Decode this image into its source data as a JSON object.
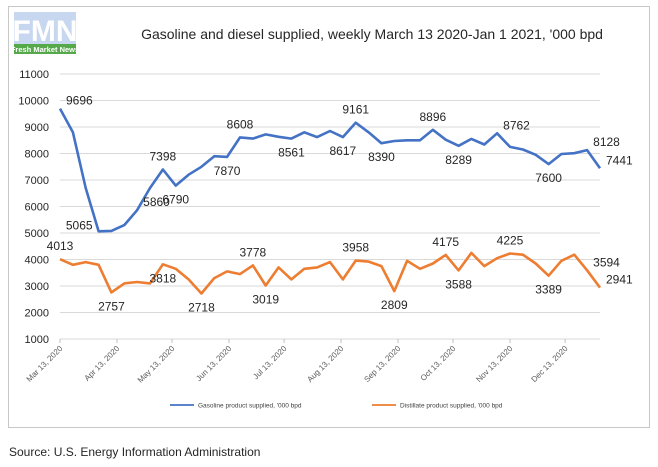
{
  "logo": {
    "letters": "FMN",
    "text": "Fresh Market News"
  },
  "chart_data": {
    "type": "line",
    "title": "Gasoline and diesel supplied, weekly March 13 2020-Jan 1 2021, '000 bpd",
    "ylim": [
      1000,
      11000
    ],
    "yticks": [
      1000,
      2000,
      3000,
      4000,
      5000,
      6000,
      7000,
      8000,
      9000,
      10000,
      11000
    ],
    "x_tick_labels": [
      "Mar 13, 2020",
      "Apr 13, 2020",
      "May 13, 2020",
      "Jun 13, 2020",
      "Jul 13, 2020",
      "Aug 13, 2020",
      "Sep 13, 2020",
      "Oct 13, 2020",
      "Nov 13, 2020",
      "Dec 13, 2020"
    ],
    "x_tick_week_index": [
      0,
      4.43,
      8.71,
      13.14,
      17.43,
      21.86,
      26.29,
      30.57,
      35,
      39.29
    ],
    "legend_position": "bottom",
    "series": [
      {
        "name": "Gasoline product supplied, '000 bpd",
        "color": "#4472C4",
        "values": [
          9696,
          8800,
          6700,
          5065,
          5080,
          5300,
          5860,
          6700,
          7398,
          6790,
          7200,
          7500,
          7900,
          7870,
          8608,
          8561,
          8720,
          8630,
          8561,
          8800,
          8617,
          8850,
          8617,
          9161,
          8800,
          8390,
          8470,
          8500,
          8500,
          8896,
          8520,
          8289,
          8550,
          8340,
          8762,
          8250,
          8150,
          7950,
          7600,
          7980,
          8010,
          8128,
          7441
        ],
        "labels": [
          {
            "i": 0,
            "text": "9696",
            "pos": "right"
          },
          {
            "i": 3,
            "text": "5065",
            "pos": "left"
          },
          {
            "i": 6,
            "text": "5860",
            "pos": "right"
          },
          {
            "i": 8,
            "text": "7398",
            "pos": "above"
          },
          {
            "i": 9,
            "text": "6790",
            "pos": "below"
          },
          {
            "i": 13,
            "text": "7870",
            "pos": "below"
          },
          {
            "i": 14,
            "text": "8608",
            "pos": "above"
          },
          {
            "i": 18,
            "text": "8561",
            "pos": "below"
          },
          {
            "i": 22,
            "text": "8617",
            "pos": "below"
          },
          {
            "i": 23,
            "text": "9161",
            "pos": "above"
          },
          {
            "i": 25,
            "text": "8390",
            "pos": "below"
          },
          {
            "i": 29,
            "text": "8896",
            "pos": "above"
          },
          {
            "i": 31,
            "text": "8289",
            "pos": "below"
          },
          {
            "i": 34,
            "text": "8762",
            "pos": "right"
          },
          {
            "i": 38,
            "text": "7600",
            "pos": "below"
          },
          {
            "i": 41,
            "text": "8128",
            "pos": "right"
          },
          {
            "i": 42,
            "text": "7441",
            "pos": "right"
          }
        ]
      },
      {
        "name": "Distillate product supplied, '000 bpd",
        "color": "#ED7D31",
        "values": [
          4013,
          3800,
          3900,
          3800,
          2757,
          3100,
          3150,
          3100,
          3818,
          3650,
          3250,
          2718,
          3300,
          3550,
          3450,
          3778,
          3019,
          3700,
          3250,
          3650,
          3700,
          3900,
          3250,
          3958,
          3920,
          3750,
          2809,
          3950,
          3650,
          3850,
          4175,
          3588,
          4250,
          3750,
          4050,
          4225,
          4180,
          3850,
          3389,
          3950,
          4180,
          3594,
          2941
        ],
        "labels": [
          {
            "i": 0,
            "text": "4013",
            "pos": "above"
          },
          {
            "i": 4,
            "text": "2757",
            "pos": "below"
          },
          {
            "i": 8,
            "text": "3818",
            "pos": "below"
          },
          {
            "i": 11,
            "text": "2718",
            "pos": "below"
          },
          {
            "i": 15,
            "text": "3778",
            "pos": "above"
          },
          {
            "i": 16,
            "text": "3019",
            "pos": "below"
          },
          {
            "i": 23,
            "text": "3958",
            "pos": "above"
          },
          {
            "i": 26,
            "text": "2809",
            "pos": "below"
          },
          {
            "i": 30,
            "text": "4175",
            "pos": "above"
          },
          {
            "i": 31,
            "text": "3588",
            "pos": "below"
          },
          {
            "i": 35,
            "text": "4225",
            "pos": "above"
          },
          {
            "i": 38,
            "text": "3389",
            "pos": "below"
          },
          {
            "i": 41,
            "text": "3594",
            "pos": "right"
          },
          {
            "i": 42,
            "text": "2941",
            "pos": "right"
          }
        ]
      }
    ]
  },
  "source": "Source: U.S. Energy Information Administration"
}
